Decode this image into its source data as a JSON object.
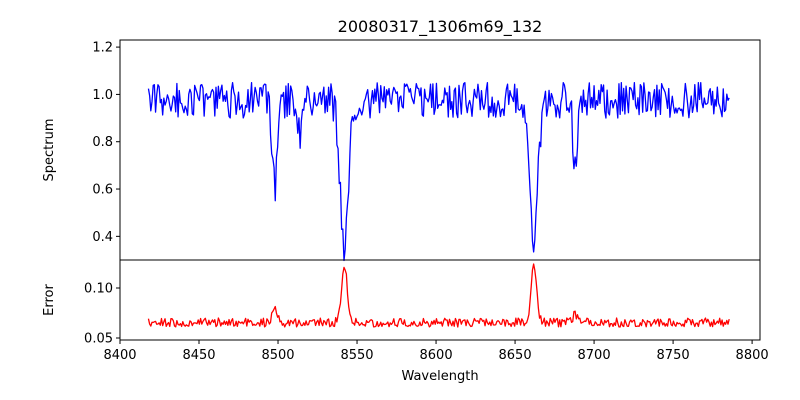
{
  "chart_data": [
    {
      "type": "line",
      "title": "20080317_1306m69_132",
      "xlabel": "",
      "ylabel": "Spectrum",
      "xlim": [
        8400,
        8805
      ],
      "ylim": [
        0.3,
        1.23
      ],
      "xticks": [],
      "yticks": [
        0.4,
        0.6,
        0.8,
        1.0,
        1.2
      ],
      "ytick_labels": [
        "0.4",
        "0.6",
        "0.8",
        "1.0",
        "1.2"
      ],
      "series": [
        {
          "color": "#0000ff",
          "x_range": [
            8418,
            8786
          ],
          "baseline": 0.975,
          "noise_amplitude": 0.075,
          "absorption_lines": [
            {
              "center": 8498,
              "depth": 0.37,
              "width": 1.6
            },
            {
              "center": 8542,
              "depth": 0.62,
              "width": 2.6
            },
            {
              "center": 8662,
              "depth": 0.6,
              "width": 2.4
            },
            {
              "center": 8688,
              "depth": 0.3,
              "width": 1.3
            },
            {
              "center": 8514,
              "depth": 0.16,
              "width": 1.2
            }
          ]
        }
      ]
    },
    {
      "type": "line",
      "title": "",
      "xlabel": "Wavelength",
      "ylabel": "Error",
      "xlim": [
        8400,
        8805
      ],
      "ylim": [
        0.048,
        0.128
      ],
      "xticks": [
        8400,
        8450,
        8500,
        8550,
        8600,
        8650,
        8700,
        8750,
        8800
      ],
      "xtick_labels": [
        "8400",
        "8450",
        "8500",
        "8550",
        "8600",
        "8650",
        "8700",
        "8750",
        "8800"
      ],
      "yticks": [
        0.05,
        0.1
      ],
      "ytick_labels": [
        "0.05",
        "0.10"
      ],
      "series": [
        {
          "color": "#ff0000",
          "x_range": [
            8418,
            8786
          ],
          "baseline": 0.0655,
          "noise_amplitude": 0.0045,
          "emission_lines": [
            {
              "center": 8498,
              "height": 0.016,
              "width": 1.6
            },
            {
              "center": 8542,
              "height": 0.058,
              "width": 1.8
            },
            {
              "center": 8662,
              "height": 0.057,
              "width": 1.8
            },
            {
              "center": 8688,
              "height": 0.009,
              "width": 1.3
            }
          ]
        }
      ]
    }
  ]
}
